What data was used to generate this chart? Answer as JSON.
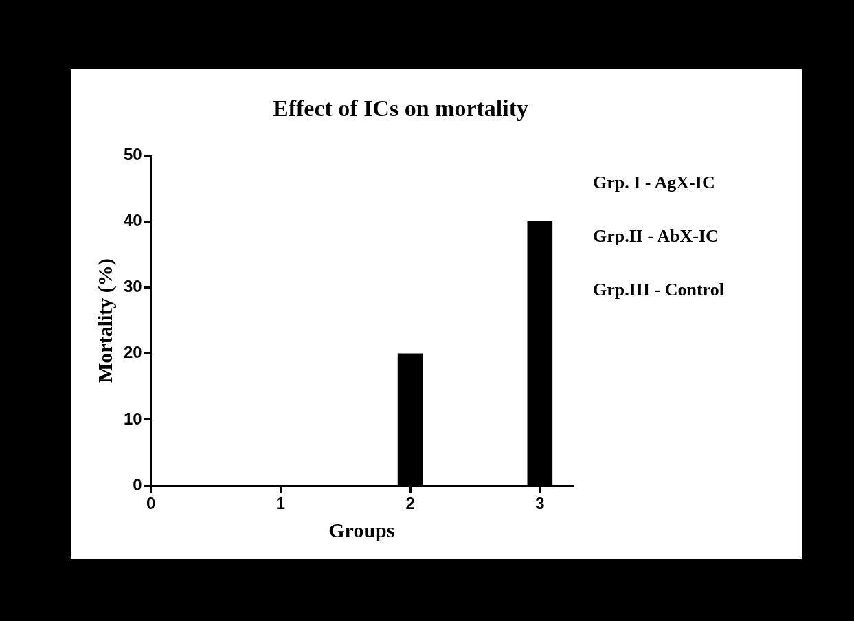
{
  "chart_data": {
    "type": "bar",
    "title": "Effect of ICs on mortality",
    "xlabel": "Groups",
    "ylabel": "Mortality (%)",
    "x": [
      1,
      2,
      3
    ],
    "series": [
      {
        "color": "#000000",
        "values": [
          0,
          20,
          40
        ]
      }
    ],
    "xlim": [
      0,
      3.25
    ],
    "xticks": [
      0,
      1,
      2,
      3
    ],
    "ylim": [
      0,
      50
    ],
    "yticks": [
      0,
      10,
      20,
      30,
      40,
      50
    ],
    "grid": false,
    "legend": false,
    "annotations": [
      "Grp. I - AgX-IC",
      "Grp.II - AbX-IC",
      "Grp.III - Control"
    ]
  }
}
